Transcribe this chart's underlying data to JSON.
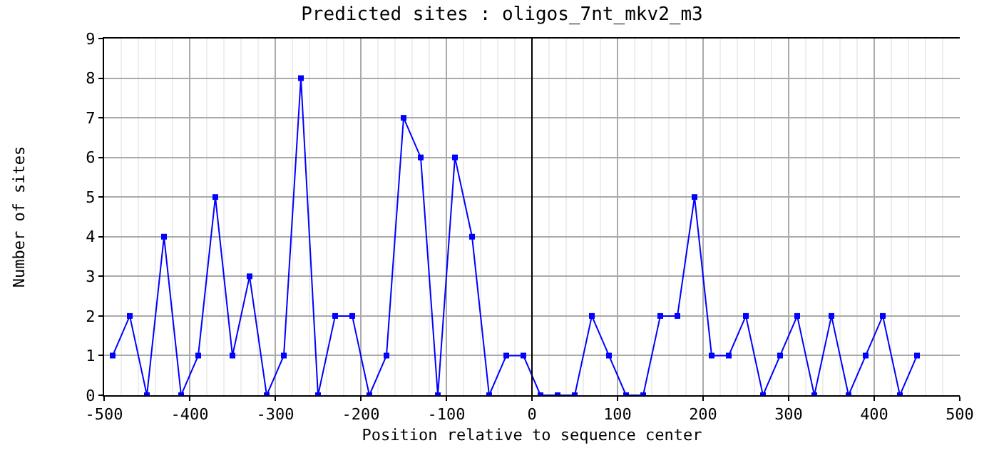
{
  "chart_data": {
    "type": "line",
    "title": "Predicted sites : oligos_7nt_mkv2_m3",
    "xlabel": "Position relative to sequence center",
    "ylabel": "Number of sites",
    "x": [
      -490,
      -470,
      -450,
      -430,
      -410,
      -390,
      -370,
      -350,
      -330,
      -310,
      -290,
      -270,
      -250,
      -230,
      -210,
      -190,
      -170,
      -150,
      -130,
      -110,
      -90,
      -70,
      -50,
      -30,
      -10,
      10,
      30,
      50,
      70,
      90,
      110,
      130,
      150,
      170,
      190,
      210,
      230,
      250,
      270,
      290,
      310,
      330,
      350,
      370,
      390,
      410,
      430,
      450
    ],
    "series": [
      {
        "color": "#0000ff",
        "values": [
          1,
          2,
          0,
          4,
          0,
          1,
          5,
          1,
          3,
          0,
          1,
          8,
          0,
          2,
          2,
          0,
          1,
          7,
          6,
          0,
          6,
          4,
          0,
          1,
          1,
          0,
          0,
          0,
          2,
          1,
          0,
          0,
          2,
          2,
          5,
          1,
          1,
          2,
          0,
          1,
          2,
          0,
          2,
          0,
          1,
          2,
          0,
          1
        ]
      }
    ],
    "xlim": [
      -500,
      500
    ],
    "xticks": [
      -500,
      -400,
      -300,
      -200,
      -100,
      0,
      100,
      200,
      300,
      400,
      500
    ],
    "ylim": [
      0,
      9
    ],
    "yticks": [
      0,
      1,
      2,
      3,
      4,
      5,
      6,
      7,
      8,
      9
    ],
    "ref_lines": [
      {
        "axis": "x",
        "value": 0,
        "color": "#000000"
      }
    ],
    "grid": true,
    "marker": "square",
    "line_style": "solid"
  }
}
